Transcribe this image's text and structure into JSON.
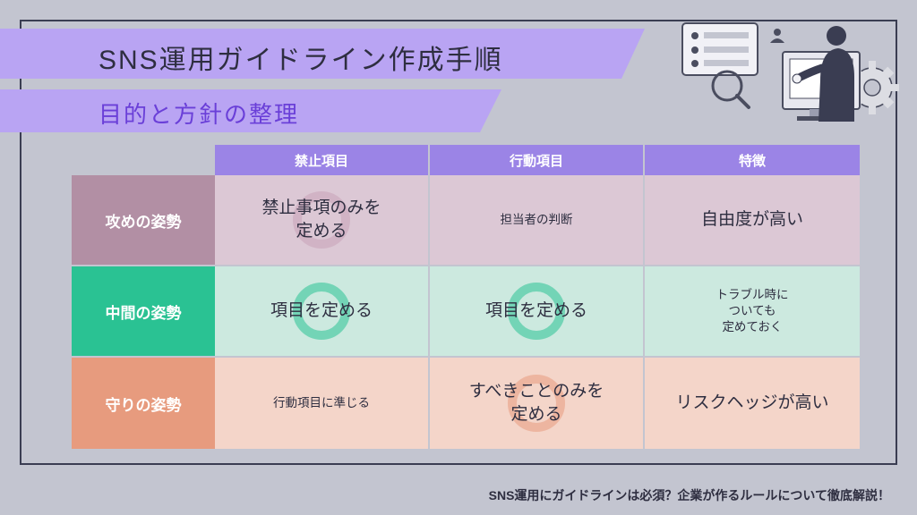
{
  "colors": {
    "background": "#c3c5d0",
    "frame_border": "#3a3d52",
    "band_bg": "#b9a4f3",
    "title_text": "#2e2e40",
    "subtitle_text": "#6a3fd8",
    "header_bg": "#9b84e6",
    "row1_label_bg": "#b28fa4",
    "row1_cell_bg": "#dcc8d5",
    "row2_label_bg": "#2ac293",
    "row2_cell_bg": "#cce9df",
    "row3_label_bg": "#e79b7e",
    "row3_cell_bg": "#f4d5c9",
    "ring_row1": "#c9a3b8",
    "ring_row2": "#2ac293",
    "ring_row3": "#e79b7e"
  },
  "title": "SNS運用ガイドライン作成手順",
  "subtitle": "目的と方針の整理",
  "table": {
    "headers": [
      "",
      "禁止項目",
      "行動項目",
      "特徴"
    ],
    "rows": [
      {
        "label": "攻めの姿勢",
        "cells": [
          {
            "text": "禁止事項のみを\n定める",
            "ring": true,
            "size": "big"
          },
          {
            "text": "担当者の判断",
            "ring": false,
            "size": "small"
          },
          {
            "text": "自由度が高い",
            "ring": false,
            "size": "big"
          }
        ]
      },
      {
        "label": "中間の姿勢",
        "cells": [
          {
            "text": "項目を定める",
            "ring": true,
            "size": "big"
          },
          {
            "text": "項目を定める",
            "ring": true,
            "size": "big"
          },
          {
            "text": "トラブル時に\nついても\n定めておく",
            "ring": false,
            "size": "small"
          }
        ]
      },
      {
        "label": "守りの姿勢",
        "cells": [
          {
            "text": "行動項目に準じる",
            "ring": false,
            "size": "small"
          },
          {
            "text": "すべきことのみを\n定める",
            "ring": true,
            "size": "big"
          },
          {
            "text": "リスクヘッジが高い",
            "ring": false,
            "size": "big"
          }
        ]
      }
    ]
  },
  "footer": "SNS運用にガイドラインは必須？企業が作るルールについて徹底解説！"
}
